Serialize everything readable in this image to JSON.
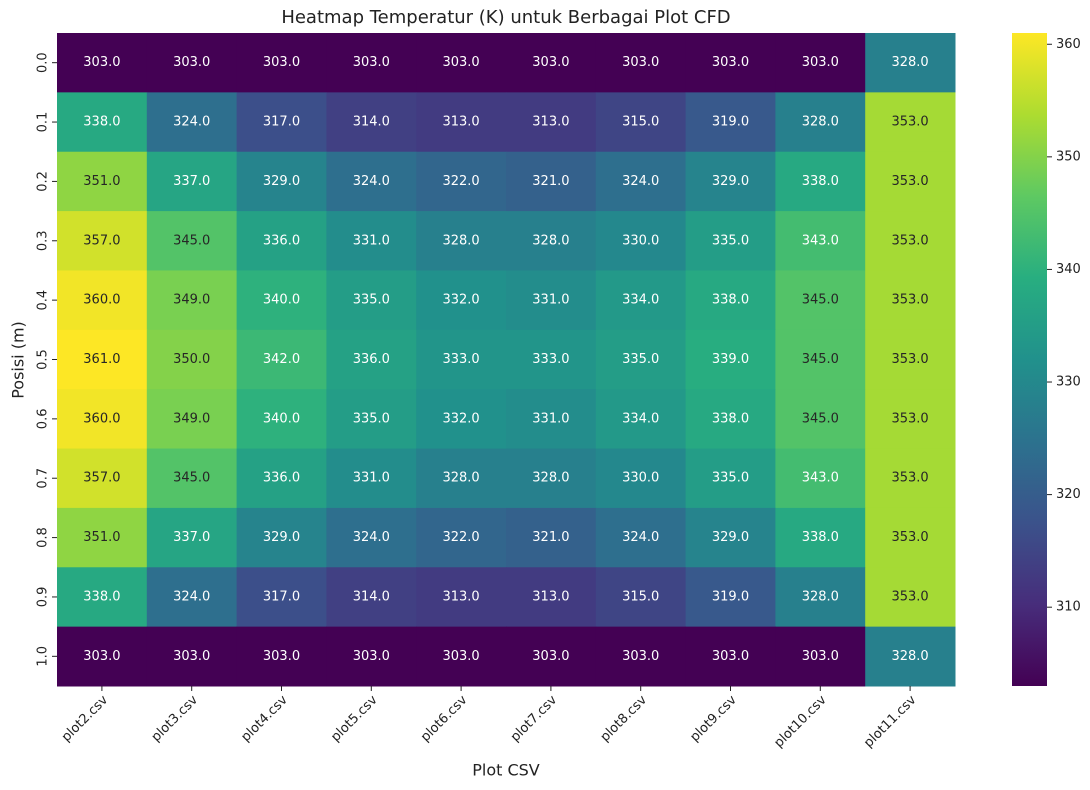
{
  "chart_data": {
    "type": "heatmap",
    "title": "Heatmap Temperatur (K) untuk Berbagai Plot CFD",
    "x_label": "Plot CSV",
    "y_label": "Posisi (m)",
    "categories": [
      "plot2.csv",
      "plot3.csv",
      "plot4.csv",
      "plot5.csv",
      "plot6.csv",
      "plot7.csv",
      "plot8.csv",
      "plot9.csv",
      "plot10.csv",
      "plot11.csv"
    ],
    "y_categories": [
      "0.0",
      "0.1",
      "0.2",
      "0.3",
      "0.4",
      "0.5",
      "0.6",
      "0.7",
      "0.8",
      "0.9",
      "1.0"
    ],
    "values": [
      [
        303,
        303,
        303,
        303,
        303,
        303,
        303,
        303,
        303,
        328
      ],
      [
        338,
        324,
        317,
        314,
        313,
        313,
        315,
        319,
        328,
        353
      ],
      [
        351,
        337,
        329,
        324,
        322,
        321,
        324,
        329,
        338,
        353
      ],
      [
        357,
        345,
        336,
        331,
        328,
        328,
        330,
        335,
        343,
        353
      ],
      [
        360,
        349,
        340,
        335,
        332,
        331,
        334,
        338,
        345,
        353
      ],
      [
        361,
        350,
        342,
        336,
        333,
        333,
        335,
        339,
        345,
        353
      ],
      [
        360,
        349,
        340,
        335,
        332,
        331,
        334,
        338,
        345,
        353
      ],
      [
        357,
        345,
        336,
        331,
        328,
        328,
        330,
        335,
        343,
        353
      ],
      [
        351,
        337,
        329,
        324,
        322,
        321,
        324,
        329,
        338,
        353
      ],
      [
        338,
        324,
        317,
        314,
        313,
        313,
        315,
        319,
        328,
        353
      ],
      [
        303,
        303,
        303,
        303,
        303,
        303,
        303,
        303,
        303,
        328
      ]
    ],
    "value_labels": [
      [
        "303.0",
        "303.0",
        "303.0",
        "303.0",
        "303.0",
        "303.0",
        "303.0",
        "303.0",
        "303.0",
        "328.0"
      ],
      [
        "338.0",
        "324.0",
        "317.0",
        "314.0",
        "313.0",
        "313.0",
        "315.0",
        "319.0",
        "328.0",
        "353.0"
      ],
      [
        "351.0",
        "337.0",
        "329.0",
        "324.0",
        "322.0",
        "321.0",
        "324.0",
        "329.0",
        "338.0",
        "353.0"
      ],
      [
        "357.0",
        "345.0",
        "336.0",
        "331.0",
        "328.0",
        "328.0",
        "330.0",
        "335.0",
        "343.0",
        "353.0"
      ],
      [
        "360.0",
        "349.0",
        "340.0",
        "335.0",
        "332.0",
        "331.0",
        "334.0",
        "338.0",
        "345.0",
        "353.0"
      ],
      [
        "361.0",
        "350.0",
        "342.0",
        "336.0",
        "333.0",
        "333.0",
        "335.0",
        "339.0",
        "345.0",
        "353.0"
      ],
      [
        "360.0",
        "349.0",
        "340.0",
        "335.0",
        "332.0",
        "331.0",
        "334.0",
        "338.0",
        "345.0",
        "353.0"
      ],
      [
        "357.0",
        "345.0",
        "336.0",
        "331.0",
        "328.0",
        "328.0",
        "330.0",
        "335.0",
        "343.0",
        "353.0"
      ],
      [
        "351.0",
        "337.0",
        "329.0",
        "324.0",
        "322.0",
        "321.0",
        "324.0",
        "329.0",
        "338.0",
        "353.0"
      ],
      [
        "338.0",
        "324.0",
        "317.0",
        "314.0",
        "313.0",
        "313.0",
        "315.0",
        "319.0",
        "328.0",
        "353.0"
      ],
      [
        "303.0",
        "303.0",
        "303.0",
        "303.0",
        "303.0",
        "303.0",
        "303.0",
        "303.0",
        "303.0",
        "328.0"
      ]
    ],
    "colormap": "viridis",
    "zlim": [
      303,
      361
    ],
    "zticks": [
      310,
      320,
      330,
      340,
      350,
      360
    ]
  }
}
